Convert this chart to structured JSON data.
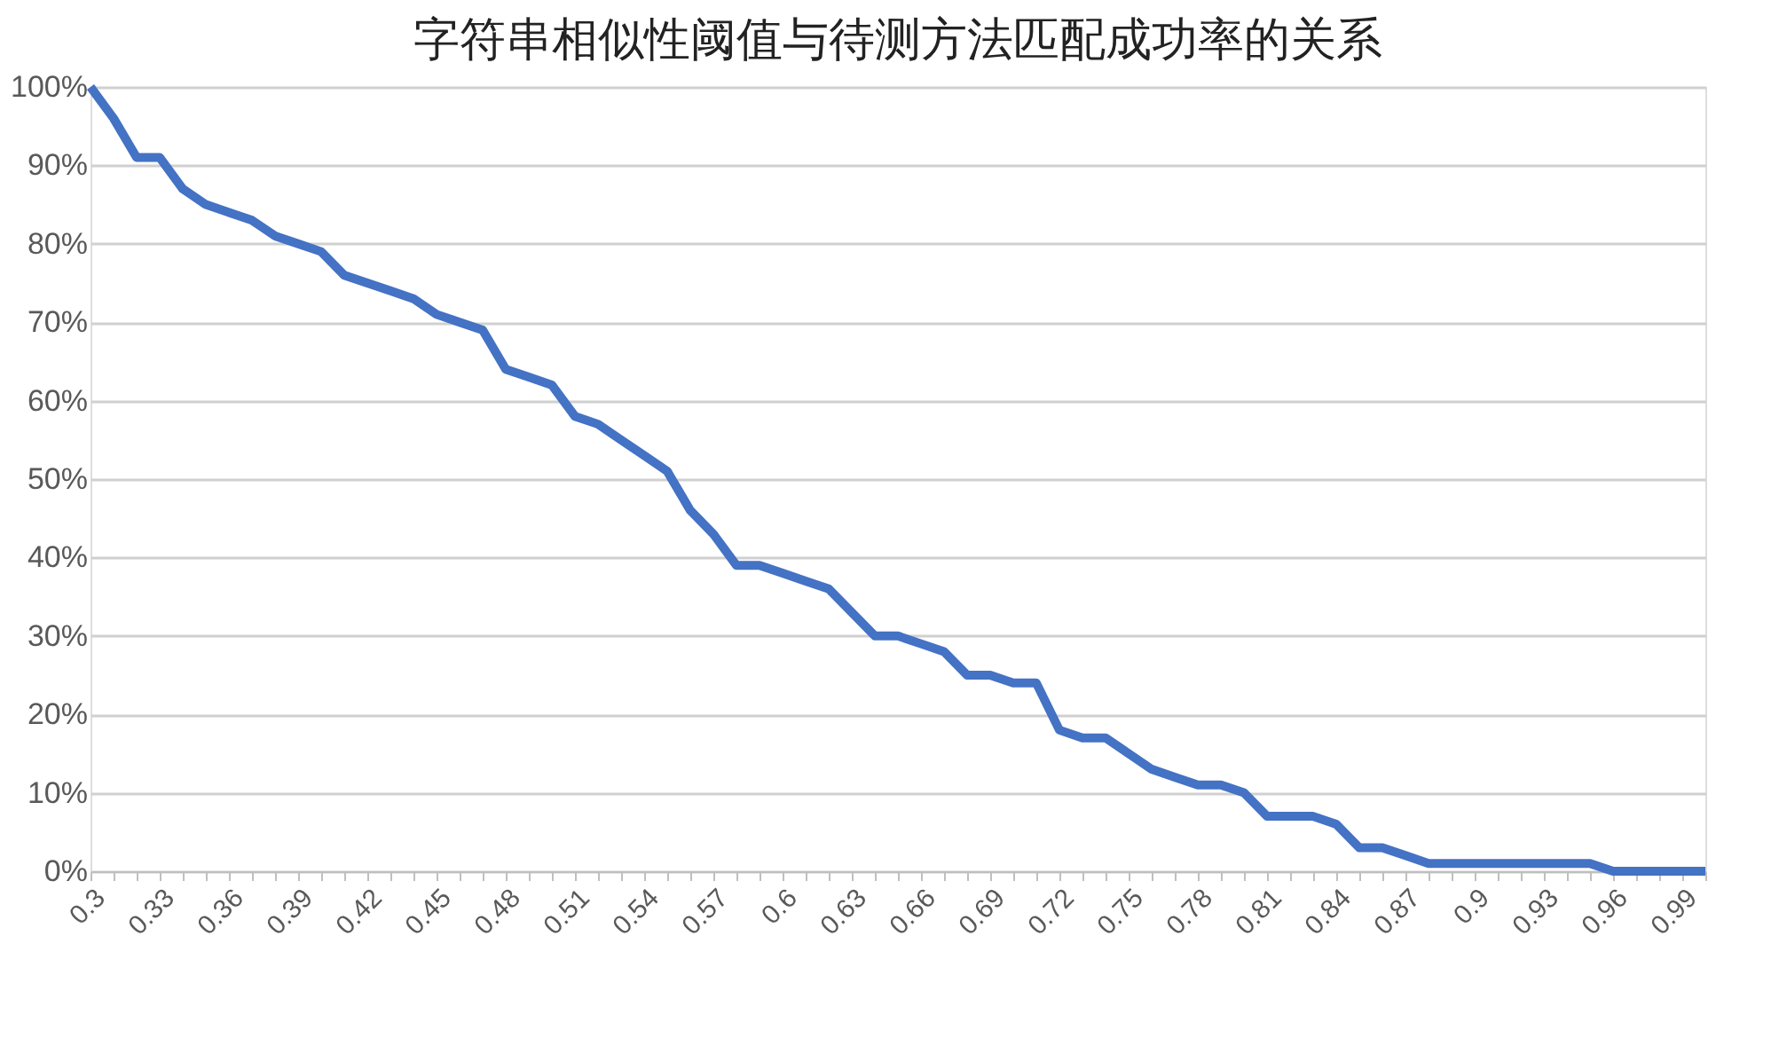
{
  "chart_data": {
    "type": "line",
    "title": "字符串相似性阈值与待测方法匹配成功率的关系",
    "categories": [
      "0.3",
      null,
      null,
      "0.33",
      null,
      null,
      "0.36",
      null,
      null,
      "0.39",
      null,
      null,
      "0.42",
      null,
      null,
      "0.45",
      null,
      null,
      "0.48",
      null,
      null,
      "0.51",
      null,
      null,
      "0.54",
      null,
      null,
      "0.57",
      null,
      null,
      "0.6",
      null,
      null,
      "0.63",
      null,
      null,
      "0.66",
      null,
      null,
      "0.69",
      null,
      null,
      "0.72",
      null,
      null,
      "0.75",
      null,
      null,
      "0.78",
      null,
      null,
      "0.81",
      null,
      null,
      "0.84",
      null,
      null,
      "0.87",
      null,
      null,
      "0.9",
      null,
      null,
      "0.93",
      null,
      null,
      "0.96",
      null,
      null,
      "0.99",
      null
    ],
    "series": [
      {
        "color": "#4472c4",
        "values": [
          100,
          96,
          91,
          91,
          87,
          85,
          84,
          83,
          81,
          80,
          79,
          76,
          75,
          74,
          73,
          71,
          70,
          69,
          64,
          63,
          62,
          58,
          57,
          55,
          53,
          51,
          46,
          43,
          39,
          39,
          38,
          37,
          36,
          33,
          30,
          30,
          29,
          28,
          25,
          25,
          24,
          24,
          18,
          17,
          17,
          15,
          13,
          12,
          11,
          11,
          10,
          7,
          7,
          7,
          6,
          3,
          3,
          2,
          1,
          1,
          1,
          1,
          1,
          1,
          1,
          1,
          0,
          0,
          0,
          0,
          0
        ]
      }
    ],
    "ylim": [
      0,
      100
    ],
    "yticks": [
      {
        "value": 0,
        "label": "0%"
      },
      {
        "value": 10,
        "label": "10%"
      },
      {
        "value": 20,
        "label": "20%"
      },
      {
        "value": 30,
        "label": "30%"
      },
      {
        "value": 40,
        "label": "40%"
      },
      {
        "value": 50,
        "label": "50%"
      },
      {
        "value": 60,
        "label": "60%"
      },
      {
        "value": 70,
        "label": "70%"
      },
      {
        "value": 80,
        "label": "80%"
      },
      {
        "value": 90,
        "label": "90%"
      },
      {
        "value": 100,
        "label": "100%"
      }
    ],
    "grid": "y",
    "marker": "none",
    "line_style": "solid"
  }
}
